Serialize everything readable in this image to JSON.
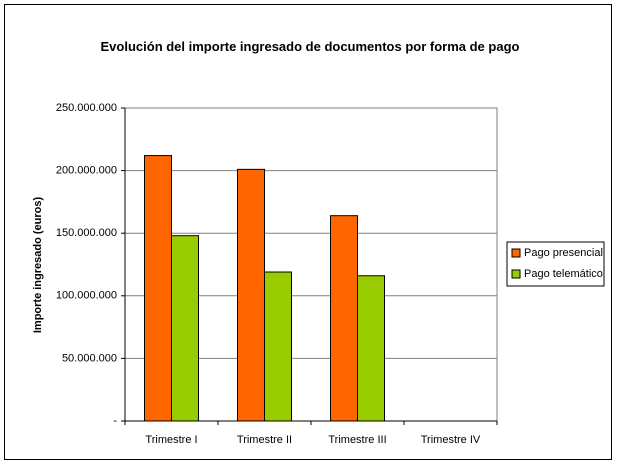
{
  "chart_data": {
    "type": "bar",
    "title": "Evolución del importe ingresado de documentos por forma de pago",
    "y_label": "Importe ingresado (euros)",
    "categories": [
      "Trimestre I",
      "Trimestre II",
      "Trimestre III",
      "Trimestre IV"
    ],
    "series": [
      {
        "name": "Pago presencial",
        "color": "#ff6600",
        "values": [
          212000000,
          201000000,
          164000000,
          null
        ]
      },
      {
        "name": "Pago telemático",
        "color": "#99cc00",
        "values": [
          148000000,
          119000000,
          116000000,
          null
        ]
      }
    ],
    "ylim": [
      0,
      250000000
    ],
    "yticks": [
      {
        "value": 0,
        "label": "-"
      },
      {
        "value": 50000000,
        "label": "50.000.000"
      },
      {
        "value": 100000000,
        "label": "100.000.000"
      },
      {
        "value": 150000000,
        "label": "150.000.000"
      },
      {
        "value": 200000000,
        "label": "200.000.000"
      },
      {
        "value": 250000000,
        "label": "250.000.000"
      }
    ],
    "grid": true,
    "legend": "right"
  }
}
